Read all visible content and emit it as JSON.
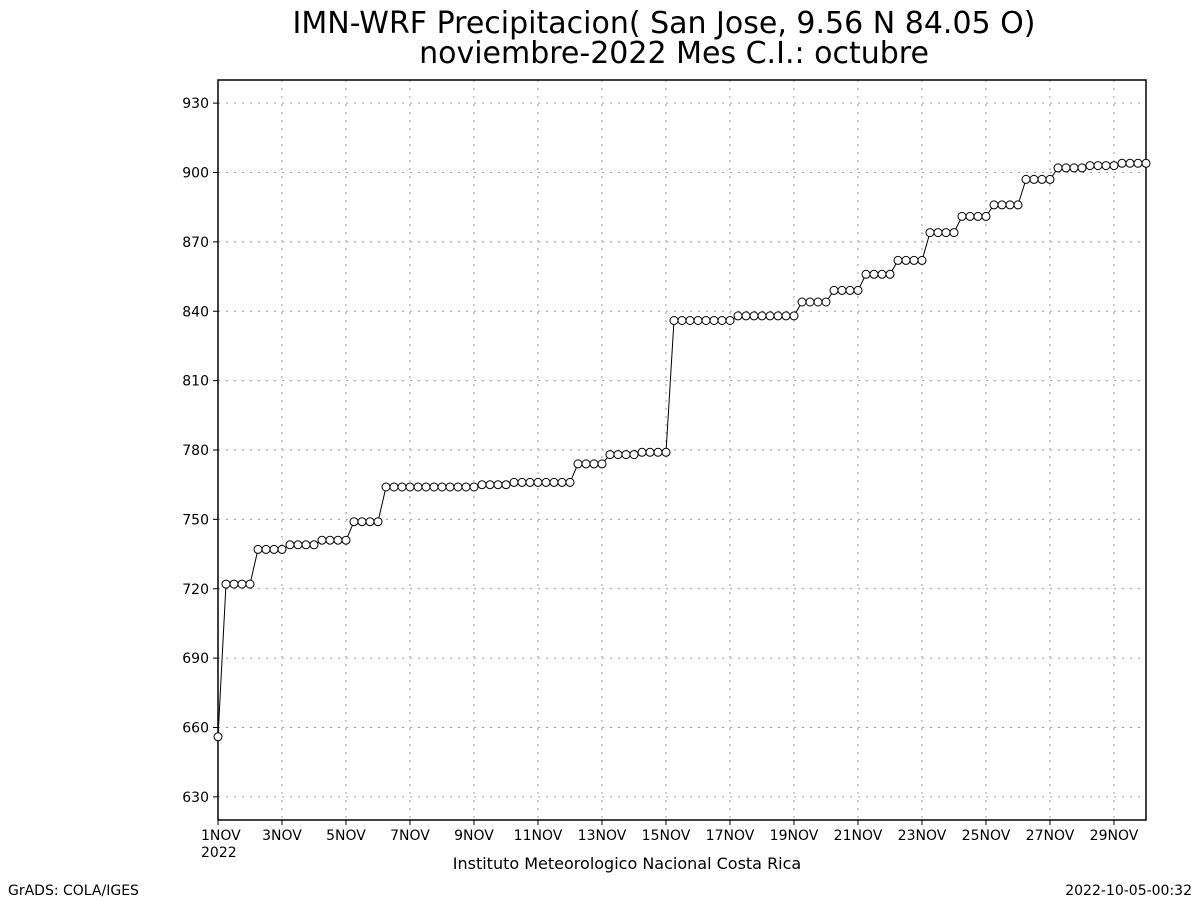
{
  "chart_data": {
    "type": "line",
    "title": "IMN-WRF  Precipitacion( San Jose, 9.56  N 84.05  O)",
    "subtitle": "noviembre-2022 Mes C.I.: octubre",
    "xlabel": "Instituto Meteorologico Nacional Costa Rica",
    "ylabel": "",
    "x_range": [
      "2022-11-01",
      "2022-11-30"
    ],
    "ylim": [
      620,
      940
    ],
    "y_ticks": [
      630,
      660,
      690,
      720,
      750,
      780,
      810,
      840,
      870,
      900,
      930
    ],
    "x_ticks": [
      {
        "day": 1,
        "label": "1NOV",
        "sub": "2022"
      },
      {
        "day": 3,
        "label": "3NOV"
      },
      {
        "day": 5,
        "label": "5NOV"
      },
      {
        "day": 7,
        "label": "7NOV"
      },
      {
        "day": 9,
        "label": "9NOV"
      },
      {
        "day": 11,
        "label": "11NOV"
      },
      {
        "day": 13,
        "label": "13NOV"
      },
      {
        "day": 15,
        "label": "15NOV"
      },
      {
        "day": 17,
        "label": "17NOV"
      },
      {
        "day": 19,
        "label": "19NOV"
      },
      {
        "day": 21,
        "label": "21NOV"
      },
      {
        "day": 23,
        "label": "23NOV"
      },
      {
        "day": 25,
        "label": "25NOV"
      },
      {
        "day": 27,
        "label": "27NOV"
      },
      {
        "day": 29,
        "label": "29NOV"
      }
    ],
    "grid": true,
    "marker": "open-circle",
    "line_color": "#000000",
    "series": [
      {
        "x_day": [
          1.0,
          1.25,
          1.5,
          1.75,
          2.0,
          2.25,
          2.5,
          2.75,
          3.0,
          3.25,
          3.5,
          3.75,
          4.0,
          4.25,
          4.5,
          4.75,
          5.0,
          5.25,
          5.5,
          5.75,
          6.0,
          6.25,
          6.5,
          6.75,
          7.0,
          7.25,
          7.5,
          7.75,
          8.0,
          8.25,
          8.5,
          8.75,
          9.0,
          9.25,
          9.5,
          9.75,
          10.0,
          10.25,
          10.5,
          10.75,
          11.0,
          11.25,
          11.5,
          11.75,
          12.0,
          12.25,
          12.5,
          12.75,
          13.0,
          13.25,
          13.5,
          13.75,
          14.0,
          14.25,
          14.5,
          14.75,
          15.0,
          15.25,
          15.5,
          15.75,
          16.0,
          16.25,
          16.5,
          16.75,
          17.0,
          17.25,
          17.5,
          17.75,
          18.0,
          18.25,
          18.5,
          18.75,
          19.0,
          19.25,
          19.5,
          19.75,
          20.0,
          20.25,
          20.5,
          20.75,
          21.0,
          21.25,
          21.5,
          21.75,
          22.0,
          22.25,
          22.5,
          22.75,
          23.0,
          23.25,
          23.5,
          23.75,
          24.0,
          24.25,
          24.5,
          24.75,
          25.0,
          25.25,
          25.5,
          25.75,
          26.0,
          26.25,
          26.5,
          26.75,
          27.0,
          27.25,
          27.5,
          27.75,
          28.0,
          28.25,
          28.5,
          28.75,
          29.0,
          29.25,
          29.5,
          29.75,
          30.0
        ],
        "y": [
          656,
          722,
          722,
          722,
          722,
          737,
          737,
          737,
          737,
          739,
          739,
          739,
          739,
          741,
          741,
          741,
          741,
          749,
          749,
          749,
          749,
          764,
          764,
          764,
          764,
          764,
          764,
          764,
          764,
          764,
          764,
          764,
          764,
          765,
          765,
          765,
          765,
          766,
          766,
          766,
          766,
          766,
          766,
          766,
          766,
          774,
          774,
          774,
          774,
          778,
          778,
          778,
          778,
          779,
          779,
          779,
          779,
          836,
          836,
          836,
          836,
          836,
          836,
          836,
          836,
          838,
          838,
          838,
          838,
          838,
          838,
          838,
          838,
          844,
          844,
          844,
          844,
          849,
          849,
          849,
          849,
          856,
          856,
          856,
          856,
          862,
          862,
          862,
          862,
          874,
          874,
          874,
          874,
          881,
          881,
          881,
          881,
          886,
          886,
          886,
          886,
          897,
          897,
          897,
          897,
          902,
          902,
          902,
          902,
          903,
          903,
          903,
          903,
          904,
          904,
          904,
          904
        ]
      }
    ]
  },
  "footer": {
    "left": "GrADS: COLA/IGES",
    "right": "2022-10-05-00:32"
  }
}
